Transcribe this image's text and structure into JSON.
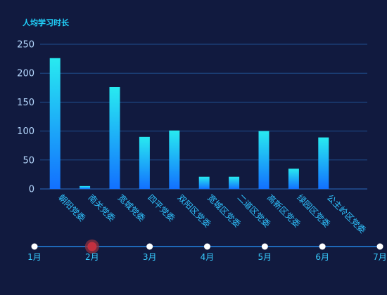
{
  "colors": {
    "background": "#111a3f",
    "bar_top": "#28eaf0",
    "bar_bottom": "#1270ff",
    "grid": "#1f4f8f",
    "title": "#21d5ff",
    "category_label": "#2fc4ff",
    "timeline_active": "#c3303f"
  },
  "chart_data": {
    "type": "bar",
    "title": "人均学习时长",
    "xlabel": "",
    "ylabel": "",
    "categories": [
      "朝阳党委",
      "南关党委",
      "宽城党委",
      "四平党委",
      "双阳区党委",
      "宽城区党委",
      "二道区党委",
      "高新区党委",
      "绿园区党委",
      "公主岭区党委"
    ],
    "values": [
      226,
      5,
      176,
      90,
      101,
      21,
      21,
      100,
      35,
      89
    ],
    "ylim": [
      0,
      250
    ],
    "yticks": [
      0,
      50,
      100,
      150,
      200,
      250
    ],
    "grid": true,
    "legend": "none"
  },
  "timeline": {
    "months": [
      "1月",
      "2月",
      "3月",
      "4月",
      "5月",
      "6月",
      "7月"
    ],
    "active_index": 1
  }
}
